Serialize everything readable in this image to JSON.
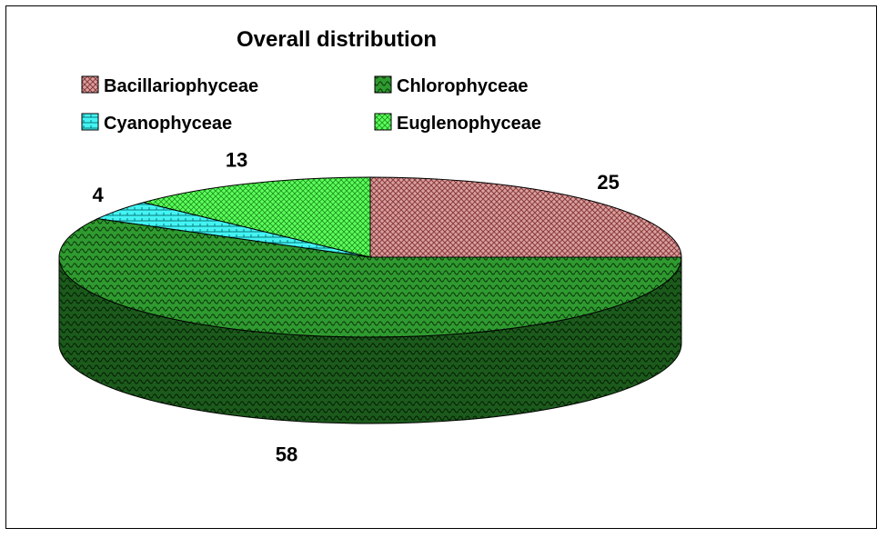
{
  "chart_data": {
    "type": "pie",
    "title": "Overall distribution",
    "labels": [
      "Bacillariophyceae",
      "Chlorophyceae",
      "Cyanophyceae",
      "Euglenophyceae"
    ],
    "values": [
      25,
      58,
      4,
      13
    ],
    "colors": [
      "#c48a8a",
      "#2f8c2f",
      "#33f0f0",
      "#4cff4c"
    ],
    "legend_position": "top",
    "three_d": true
  }
}
